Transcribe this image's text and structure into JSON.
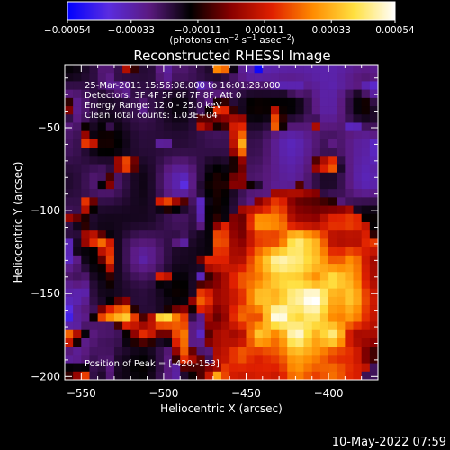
{
  "chart_data": {
    "type": "heatmap",
    "title": "Reconstructed RHESSI Image",
    "xlabel": "Heliocentric X (arcsec)",
    "ylabel": "Heliocentric Y (arcsec)",
    "xlim": [
      -560,
      -370
    ],
    "ylim": [
      -202,
      -12
    ],
    "x_ticks": [
      -550,
      -500,
      -450,
      -400
    ],
    "x_tick_labels": [
      "−550",
      "−500",
      "−450",
      "−400"
    ],
    "y_ticks": [
      -50,
      -100,
      -150,
      -200
    ],
    "y_tick_labels": [
      "−50",
      "−100",
      "−150",
      "−200"
    ],
    "info_lines": [
      "25-Mar-2011 15:56:08.000 to 16:01:28.000",
      "Detectors: 3F 4F 5F 6F 7F 8F, Att 0",
      "Energy Range: 12.0 - 25.0 keV",
      "Clean     Total counts: 1.03E+04"
    ],
    "peak_label": "Position of Peak = [-420,-153]",
    "peak_position": [
      -420,
      -153
    ],
    "colorbar": {
      "min": -0.00054,
      "max": 0.00054,
      "ticks": [
        -0.00054,
        -0.00033,
        -0.00011,
        0.00011,
        0.00033,
        0.00054
      ],
      "tick_labels": [
        "−0.00054",
        "−0.00033",
        "−0.00011",
        "0.00011",
        "0.00033",
        "0.00054"
      ],
      "unit_label_parts": [
        "(photons cm",
        "−2",
        " s",
        "−1",
        " asec",
        "−2",
        ")"
      ],
      "colormap_stops": [
        "#0000ff",
        "#5a2ce0",
        "#5b1a80",
        "#000000",
        "#8a0000",
        "#e02000",
        "#ff8c00",
        "#ffe040",
        "#ffffff"
      ]
    },
    "footer_timestamp": "10-May-2022 07:59"
  }
}
